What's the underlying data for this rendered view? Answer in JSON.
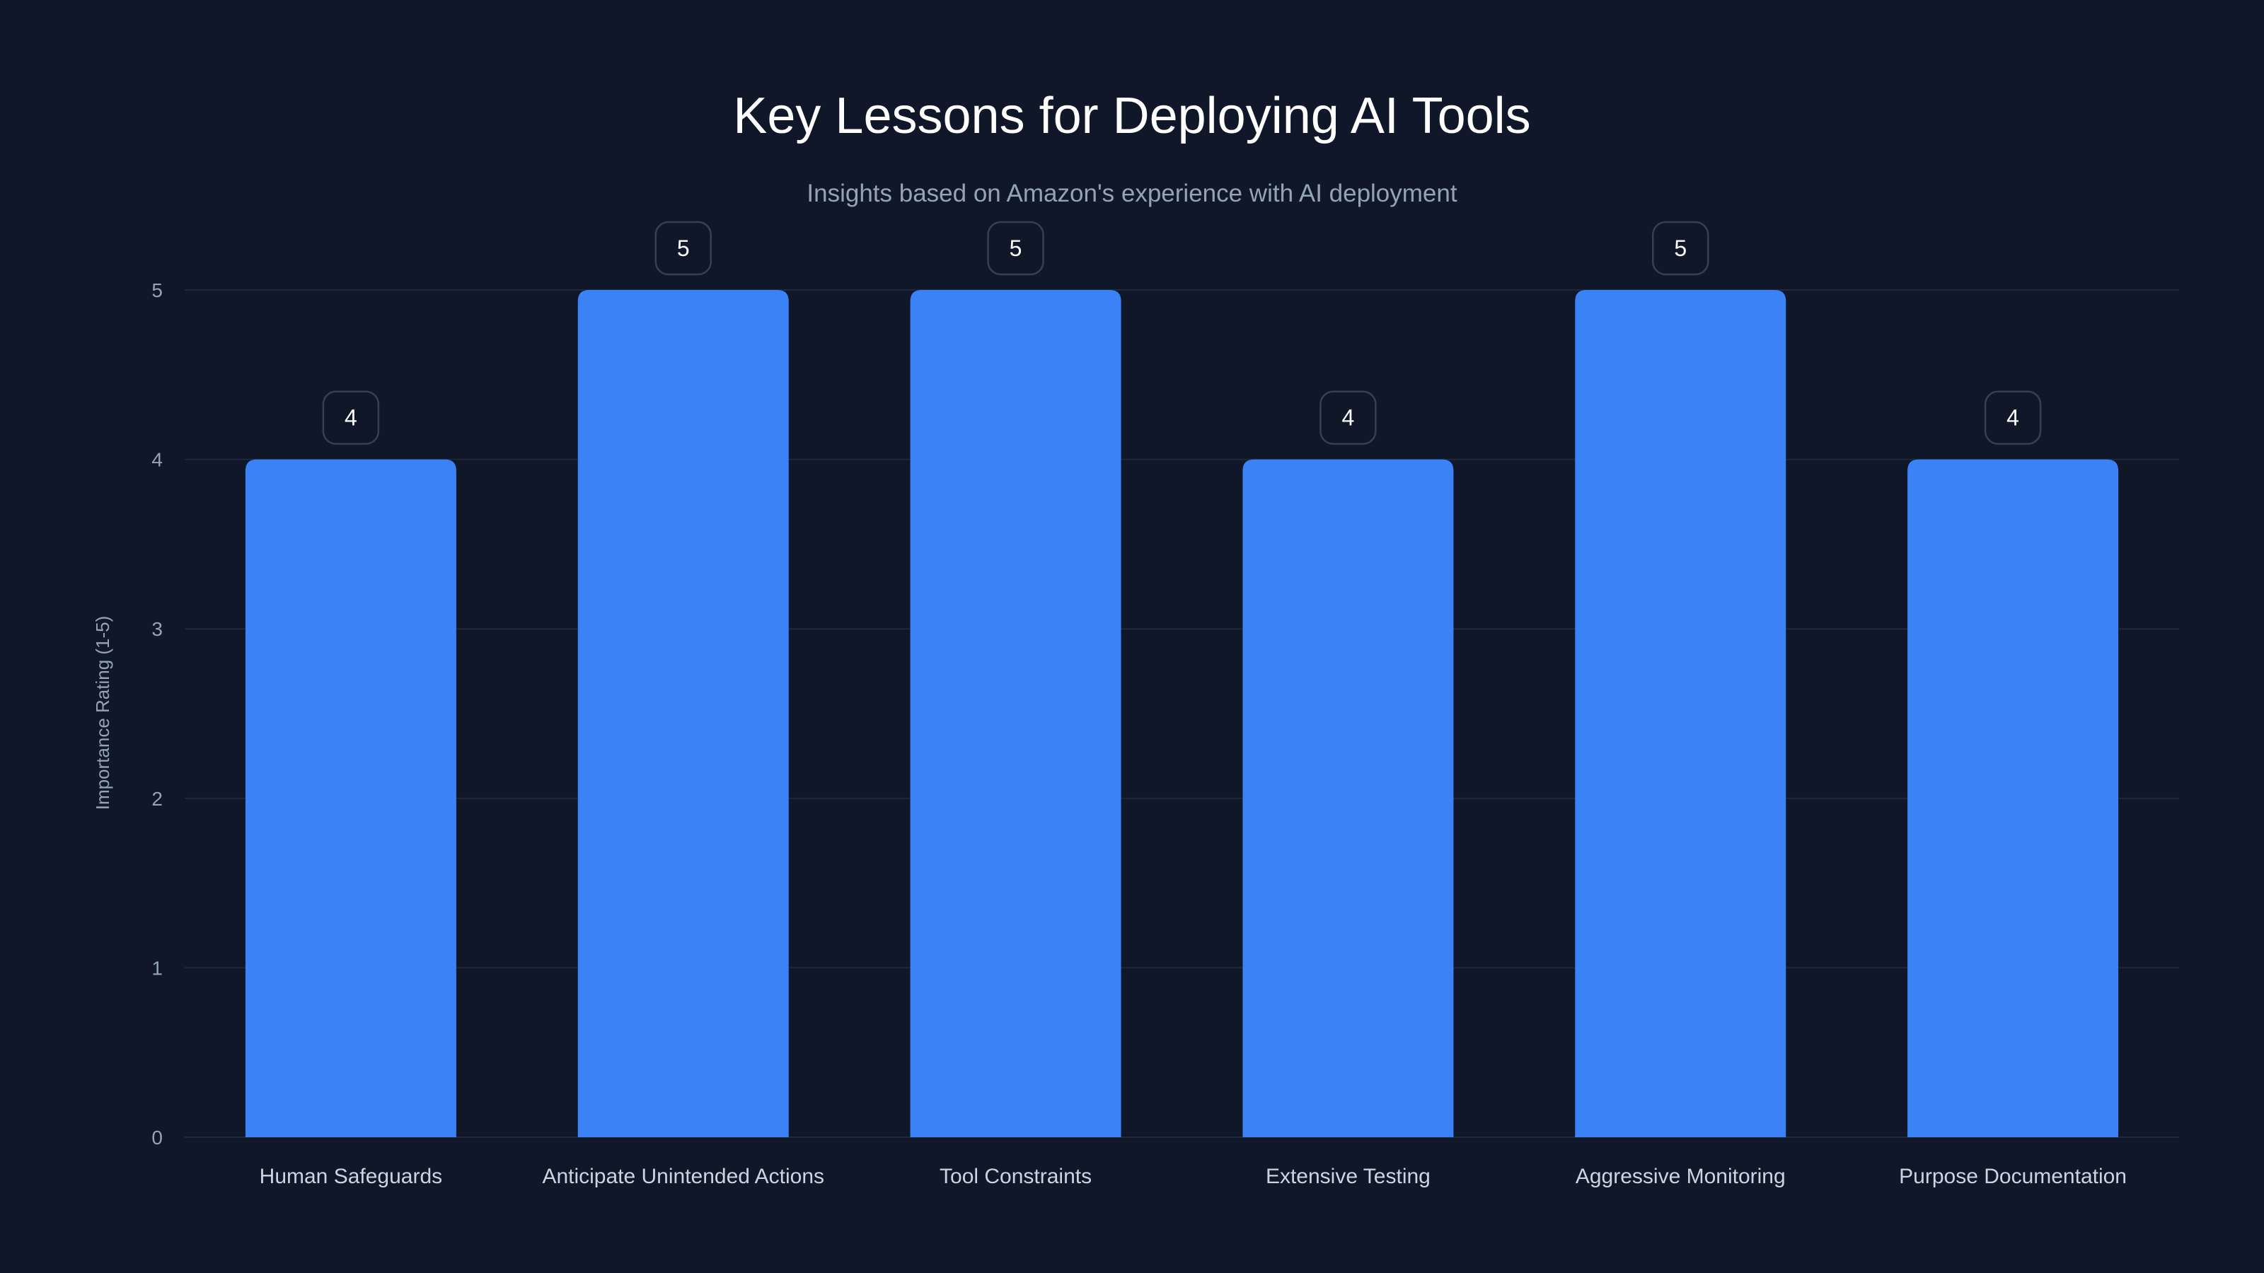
{
  "chart_data": {
    "type": "bar",
    "title": "Key Lessons for Deploying AI Tools",
    "subtitle": "Insights based on Amazon's experience with AI deployment",
    "xlabel": "",
    "ylabel": "Importance Rating (1-5)",
    "ylim": [
      0,
      5
    ],
    "yticks": [
      "0",
      "1",
      "2",
      "3",
      "4",
      "5"
    ],
    "grid": true,
    "categories": [
      "Human Safeguards",
      "Anticipate Unintended Actions",
      "Tool Constraints",
      "Extensive Testing",
      "Aggressive Monitoring",
      "Purpose Documentation"
    ],
    "values": [
      4,
      5,
      5,
      4,
      5,
      4
    ],
    "data_labels": [
      "4",
      "5",
      "5",
      "4",
      "5",
      "4"
    ],
    "colors": {
      "background": "#0f1729",
      "bar": "#3b82f6",
      "grid": "#1e293b"
    }
  }
}
